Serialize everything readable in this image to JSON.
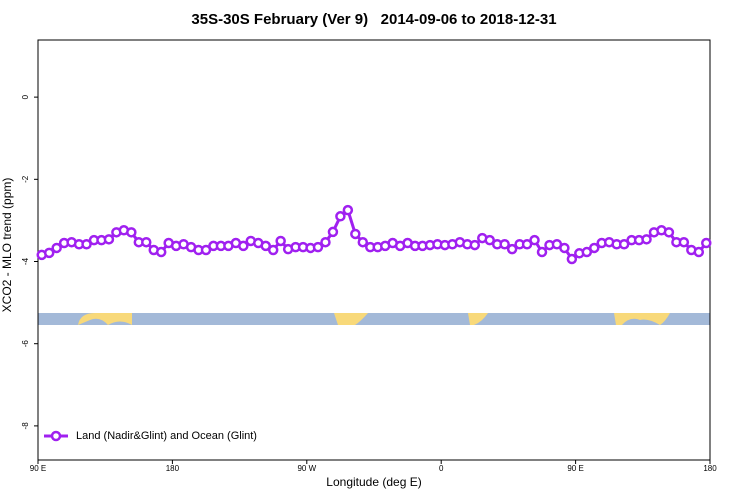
{
  "chart_data": {
    "type": "line",
    "title": "35S-30S February (Ver 9)   2014-09-06 to 2018-12-31",
    "x_label": "Longitude (deg E)",
    "y_label": "XCO2 - MLO trend (ppm)",
    "xlim": [
      90,
      540
    ],
    "ylim": [
      -8.83,
      1.39
    ],
    "xticks": [
      {
        "value": 90,
        "label": "90 E"
      },
      180,
      {
        "value": 270,
        "label": "90 W"
      },
      {
        "value": 360,
        "label": "0"
      },
      {
        "value": 450,
        "label": "90 E"
      },
      {
        "value": 540,
        "label": "180"
      }
    ],
    "yticks": [
      0,
      -2,
      -4,
      -6,
      -8
    ],
    "legend": "bottom-left",
    "x": [
      92.5,
      97.5,
      102.5,
      107.5,
      112.5,
      117.5,
      122.5,
      127.5,
      132.5,
      137.5,
      142.5,
      147.5,
      152.5,
      157.5,
      162.5,
      167.5,
      172.5,
      177.5,
      182.5,
      187.5,
      192.5,
      197.5,
      202.5,
      207.5,
      212.5,
      217.5,
      222.5,
      227.5,
      232.5,
      237.5,
      242.5,
      247.5,
      252.5,
      257.5,
      262.5,
      267.5,
      272.5,
      277.5,
      282.5,
      287.5,
      292.5,
      297.5,
      302.5,
      307.5,
      312.5,
      317.5,
      322.5,
      327.5,
      332.5,
      337.5,
      342.5,
      347.5,
      352.5,
      357.5,
      362.5,
      367.5,
      372.5,
      377.5,
      382.5,
      387.5,
      392.5,
      397.5,
      402.5,
      407.5,
      412.5,
      417.5,
      422.5,
      427.5,
      432.5,
      437.5,
      442.5,
      447.5,
      452.5,
      457.5,
      462.5,
      467.5,
      472.5,
      477.5,
      482.5,
      487.5,
      492.5,
      497.5,
      502.5,
      507.5,
      512.5,
      517.5,
      522.5,
      527.5,
      532.5,
      537.5
    ],
    "series": [
      {
        "name": "Land (Nadir&Glint) and Ocean (Glint)",
        "color": "#a020f0",
        "values": [
          -3.84,
          -3.79,
          -3.67,
          -3.55,
          -3.53,
          -3.58,
          -3.58,
          -3.48,
          -3.48,
          -3.46,
          -3.29,
          -3.24,
          -3.29,
          -3.53,
          -3.53,
          -3.72,
          -3.77,
          -3.55,
          -3.62,
          -3.58,
          -3.65,
          -3.72,
          -3.72,
          -3.62,
          -3.62,
          -3.62,
          -3.55,
          -3.62,
          -3.5,
          -3.55,
          -3.62,
          -3.72,
          -3.5,
          -3.7,
          -3.65,
          -3.65,
          -3.67,
          -3.65,
          -3.53,
          -3.28,
          -2.9,
          -2.75,
          -3.33,
          -3.53,
          -3.65,
          -3.65,
          -3.62,
          -3.55,
          -3.62,
          -3.55,
          -3.62,
          -3.62,
          -3.6,
          -3.58,
          -3.6,
          -3.58,
          -3.53,
          -3.58,
          -3.6,
          -3.43,
          -3.48,
          -3.58,
          -3.58,
          -3.7,
          -3.58,
          -3.58,
          -3.48,
          -3.77,
          -3.6,
          -3.58,
          -3.67,
          -3.94,
          -3.8,
          -3.77,
          -3.67,
          -3.55,
          -3.53,
          -3.58,
          -3.58,
          -3.48,
          -3.48,
          -3.46,
          -3.29,
          -3.24,
          -3.29,
          -3.53,
          -3.53,
          -3.72,
          -3.77,
          -3.55
        ]
      }
    ]
  }
}
